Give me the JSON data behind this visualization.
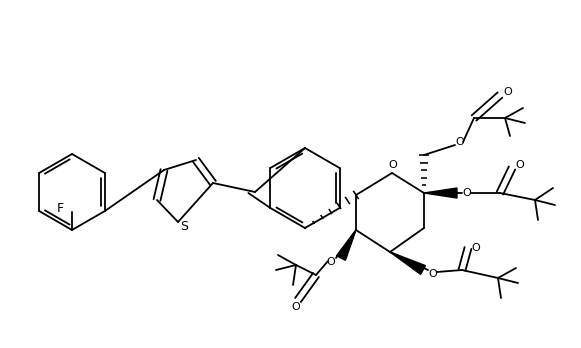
{
  "figsize": [
    5.81,
    3.48
  ],
  "dpi": 100,
  "bg": "#ffffff",
  "lc": "#000000",
  "lw": 1.3,
  "xlim": [
    0,
    581
  ],
  "ylim": [
    0,
    348
  ]
}
